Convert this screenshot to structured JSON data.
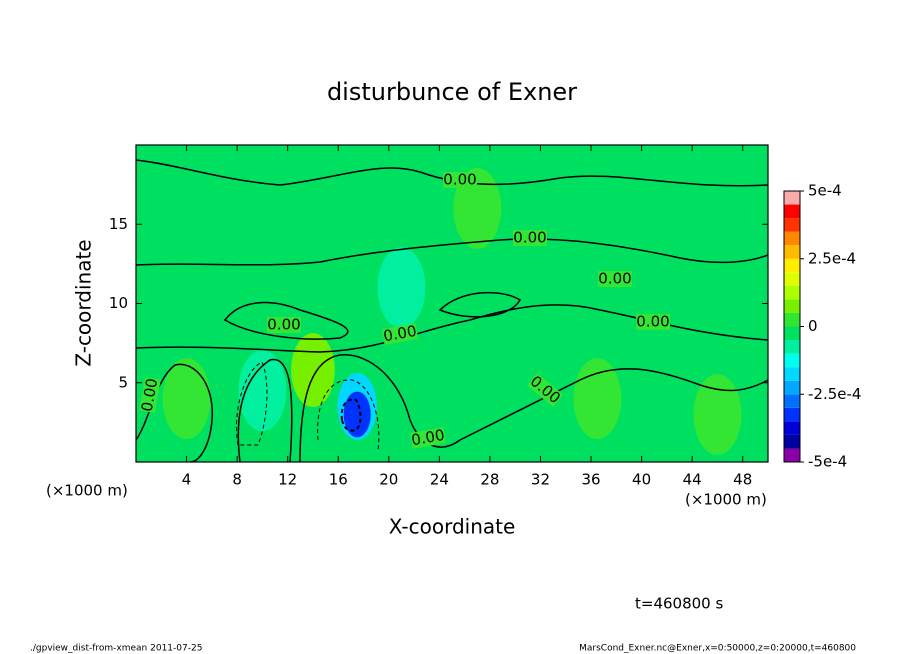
{
  "chart_data": {
    "type": "contour",
    "title": "disturbunce of Exner",
    "x_label": "X-coordinate",
    "y_label": "Z-coordinate",
    "x_unit": "(×1000 m)",
    "xlim": [
      0,
      50
    ],
    "xticks": [
      4,
      8,
      12,
      16,
      20,
      24,
      28,
      32,
      36,
      40,
      44,
      48
    ],
    "ylim": [
      0,
      20
    ],
    "yticks": [
      5,
      10,
      15
    ],
    "background_value": 0,
    "features": [
      {
        "x": 17.5,
        "z": 3.5,
        "value": -0.00015
      },
      {
        "x": 17.5,
        "z": 3,
        "value": -0.0003
      },
      {
        "x": 10,
        "z": 4.5,
        "value": -5e-05
      },
      {
        "x": 14,
        "z": 5.8,
        "value": 0.0001
      },
      {
        "x": 4,
        "z": 4,
        "value": 5e-05
      },
      {
        "x": 21,
        "z": 11,
        "value": -5e-05
      },
      {
        "x": 36.5,
        "z": 4,
        "value": 5e-05
      },
      {
        "x": 46,
        "z": 3,
        "value": 5e-05
      },
      {
        "x": 27,
        "z": 16,
        "value": 5e-05
      }
    ],
    "contour_labels": [
      "0.00",
      "0.00",
      "0.00",
      "0.00",
      "0.00",
      "0.00",
      "0.00",
      "0.00",
      "0.00"
    ],
    "colorbar": {
      "lim": [
        -0.0005,
        0.0005
      ],
      "ticks": [
        {
          "value": 0.0005,
          "label": "5e-4"
        },
        {
          "value": 0.00025,
          "label": "2.5e-4"
        },
        0,
        {
          "value": -0.00025,
          "label": "-2.5e-4"
        },
        {
          "value": -0.0005,
          "label": "-5e-4"
        }
      ],
      "levels": [
        -0.0005,
        -0.00045,
        -0.0004,
        -0.00035,
        -0.0003,
        -0.00025,
        -0.0002,
        -0.00015,
        -0.0001,
        -5e-05,
        0,
        5e-05,
        0.0001,
        0.00015,
        0.0002,
        0.00025,
        0.0003,
        0.00035,
        0.0004,
        0.00045,
        0.0005
      ],
      "colors": [
        "#8a00a8",
        "#0000a0",
        "#0000d8",
        "#0033ff",
        "#0070ff",
        "#00a8ff",
        "#00d8ff",
        "#00ffee",
        "#00f0a0",
        "#00e060",
        "#33e633",
        "#77f000",
        "#aaff00",
        "#ddff00",
        "#ffee00",
        "#ffbb00",
        "#ff8800",
        "#ff3300",
        "#ff0000",
        "#ffaaaa"
      ]
    },
    "time_label": "t=460800 s",
    "footer_left": "./gpview_dist-from-xmean  2011-07-25",
    "footer_right": "MarsCond_Exner.nc@Exner,x=0:50000,z=0:20000,t=460800"
  }
}
